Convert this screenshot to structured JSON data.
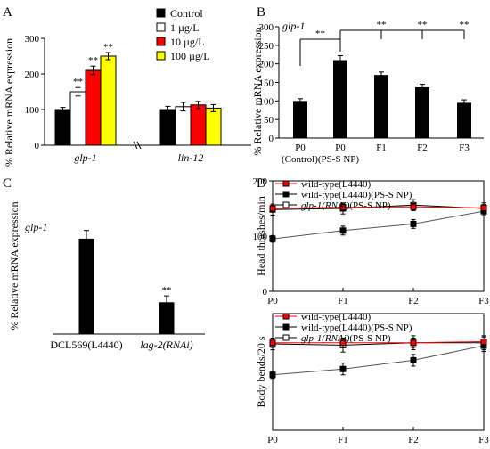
{
  "chart_data": [
    {
      "panel": "A",
      "type": "bar",
      "ylabel": "% Relative mRNA expression",
      "ylim": [
        0,
        300
      ],
      "yticks": [
        0,
        100,
        200,
        300
      ],
      "groups": [
        "glp-1",
        "lin-12"
      ],
      "group_label_italic": true,
      "legend_placement": "top-right",
      "series": [
        {
          "name": "Control",
          "color": "#000000",
          "values": [
            100,
            100
          ],
          "errors": [
            6,
            9
          ],
          "sig": [
            "",
            ""
          ]
        },
        {
          "name": "1 µg/L",
          "color": "#ffffff",
          "values": [
            150,
            108
          ],
          "errors": [
            12,
            12
          ],
          "sig": [
            "**",
            ""
          ]
        },
        {
          "name": "10 µg/L",
          "color": "#ff0000",
          "values": [
            210,
            113
          ],
          "errors": [
            12,
            10
          ],
          "sig": [
            "**",
            ""
          ]
        },
        {
          "name": "100 µg/L",
          "color": "#ffff00",
          "values": [
            250,
            104
          ],
          "errors": [
            10,
            10
          ],
          "sig": [
            "**",
            ""
          ]
        }
      ]
    },
    {
      "panel": "B",
      "type": "bar",
      "title": "glp-1",
      "ylabel": "% Relative mRNA expression",
      "ylim": [
        0,
        300
      ],
      "yticks": [
        0,
        50,
        100,
        150,
        200,
        250,
        300
      ],
      "categories": [
        "P0",
        "P0",
        "F1",
        "F2",
        "F3"
      ],
      "subcaption": "(Control)(PS-S NP)",
      "values": [
        100,
        210,
        170,
        137,
        95
      ],
      "errors": [
        6,
        12,
        8,
        8,
        8
      ],
      "color": "#000000",
      "significance": [
        {
          "from": 0,
          "to": 1,
          "label": "**"
        },
        {
          "from": 1,
          "to": 2,
          "label": "**"
        },
        {
          "from": 1,
          "to": 3,
          "label": "**"
        },
        {
          "from": 1,
          "to": 4,
          "label": "**"
        }
      ]
    },
    {
      "panel": "C",
      "type": "bar",
      "title": "glp-1",
      "ylabel": "% Relative mRNA expression",
      "ylim": [
        0,
        300
      ],
      "categories": [
        "DCL569(L4440)",
        "lag-2(RNAi)"
      ],
      "category_italic": [
        false,
        true
      ],
      "values": [
        210,
        70
      ],
      "errors": [
        18,
        14
      ],
      "sig": [
        "",
        "**"
      ],
      "color": "#000000"
    },
    {
      "panel": "D",
      "type": "line",
      "ylabel": "Head thrashes/min",
      "ylim": [
        0,
        200
      ],
      "yticks": [
        0,
        100,
        200
      ],
      "x": [
        "P0",
        "F1",
        "F2",
        "F3"
      ],
      "legend_placement": "top-left",
      "series": [
        {
          "name": "wild-type(L4440)",
          "marker": "square-filled",
          "color": "#ff0000",
          "values": [
            150,
            152,
            153,
            151
          ],
          "errors": [
            6,
            6,
            6,
            6
          ]
        },
        {
          "name": "wild-type(L4440)(PS-S NP)",
          "marker": "square-filled",
          "color": "#000000",
          "values": [
            95,
            110,
            122,
            145
          ],
          "errors": [
            6,
            8,
            8,
            8
          ]
        },
        {
          "name": "glp-1(RNAi)(PS-S NP)",
          "name_italic_part": "glp-1(RNAi)",
          "name_rest": "(PS-S NP)",
          "marker": "square-open",
          "color": "#000000",
          "values": [
            148,
            150,
            156,
            150
          ],
          "errors": [
            10,
            10,
            10,
            10
          ]
        }
      ]
    },
    {
      "panel": "D",
      "type": "line",
      "ylabel": "Body bends/20 s",
      "ylim": [
        0,
        20
      ],
      "x": [
        "P0",
        "F1",
        "F2",
        "F3"
      ],
      "legend_placement": "top-left",
      "series": [
        {
          "name": "wild-type(L4440)",
          "marker": "square-filled",
          "color": "#ff0000",
          "values": [
            15,
            15,
            15,
            15.2
          ],
          "errors": [
            0.8,
            0.8,
            0.8,
            0.8
          ]
        },
        {
          "name": "wild-type(L4440)(PS-S NP)",
          "marker": "square-filled",
          "color": "#000000",
          "values": [
            9.5,
            10.5,
            12,
            14.5
          ],
          "errors": [
            0.6,
            1,
            1,
            1
          ]
        },
        {
          "name": "glp-1(RNAi)(PS-S NP)",
          "name_italic_part": "glp-1(RNAi)",
          "name_rest": "(PS-S NP)",
          "marker": "square-open",
          "color": "#000000",
          "values": [
            14.8,
            14.6,
            15,
            15
          ],
          "errors": [
            1,
            1.2,
            1.2,
            1.2
          ]
        }
      ]
    }
  ]
}
